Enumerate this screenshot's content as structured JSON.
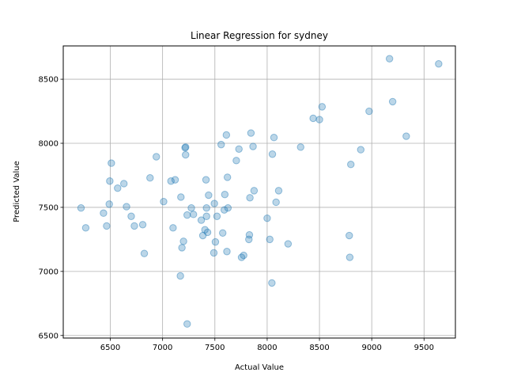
{
  "chart_data": {
    "type": "scatter",
    "title": "Linear Regression for sydney",
    "xlabel": "Actual Value",
    "ylabel": "Predicted Value",
    "xlim": [
      6050,
      9800
    ],
    "ylim": [
      6480,
      8760
    ],
    "xticks": [
      6500,
      7000,
      7500,
      8000,
      8500,
      9000,
      9500
    ],
    "yticks": [
      6500,
      7000,
      7500,
      8000,
      8500
    ],
    "grid": true,
    "color": "#1f77b4",
    "alpha": 0.3,
    "points": [
      {
        "x": 6220,
        "y": 7495
      },
      {
        "x": 6265,
        "y": 7340
      },
      {
        "x": 6435,
        "y": 7455
      },
      {
        "x": 6465,
        "y": 7355
      },
      {
        "x": 6490,
        "y": 7525
      },
      {
        "x": 6495,
        "y": 7705
      },
      {
        "x": 6510,
        "y": 7845
      },
      {
        "x": 6570,
        "y": 7650
      },
      {
        "x": 6630,
        "y": 7685
      },
      {
        "x": 6655,
        "y": 7505
      },
      {
        "x": 6700,
        "y": 7430
      },
      {
        "x": 6730,
        "y": 7355
      },
      {
        "x": 6810,
        "y": 7365
      },
      {
        "x": 6825,
        "y": 7140
      },
      {
        "x": 6880,
        "y": 7730
      },
      {
        "x": 6940,
        "y": 7895
      },
      {
        "x": 7010,
        "y": 7545
      },
      {
        "x": 7080,
        "y": 7705
      },
      {
        "x": 7100,
        "y": 7340
      },
      {
        "x": 7120,
        "y": 7715
      },
      {
        "x": 7170,
        "y": 6965
      },
      {
        "x": 7175,
        "y": 7580
      },
      {
        "x": 7185,
        "y": 7185
      },
      {
        "x": 7200,
        "y": 7235
      },
      {
        "x": 7215,
        "y": 7965
      },
      {
        "x": 7220,
        "y": 7970
      },
      {
        "x": 7220,
        "y": 7910
      },
      {
        "x": 7235,
        "y": 7440
      },
      {
        "x": 7235,
        "y": 6590
      },
      {
        "x": 7275,
        "y": 7495
      },
      {
        "x": 7295,
        "y": 7445
      },
      {
        "x": 7370,
        "y": 7400
      },
      {
        "x": 7385,
        "y": 7280
      },
      {
        "x": 7405,
        "y": 7325
      },
      {
        "x": 7415,
        "y": 7715
      },
      {
        "x": 7420,
        "y": 7430
      },
      {
        "x": 7420,
        "y": 7495
      },
      {
        "x": 7430,
        "y": 7305
      },
      {
        "x": 7440,
        "y": 7595
      },
      {
        "x": 7490,
        "y": 7145
      },
      {
        "x": 7495,
        "y": 7530
      },
      {
        "x": 7505,
        "y": 7230
      },
      {
        "x": 7520,
        "y": 7430
      },
      {
        "x": 7560,
        "y": 7990
      },
      {
        "x": 7575,
        "y": 7300
      },
      {
        "x": 7590,
        "y": 7480
      },
      {
        "x": 7595,
        "y": 7600
      },
      {
        "x": 7610,
        "y": 8065
      },
      {
        "x": 7615,
        "y": 7155
      },
      {
        "x": 7620,
        "y": 7735
      },
      {
        "x": 7625,
        "y": 7495
      },
      {
        "x": 7705,
        "y": 7865
      },
      {
        "x": 7730,
        "y": 7955
      },
      {
        "x": 7755,
        "y": 7110
      },
      {
        "x": 7775,
        "y": 7125
      },
      {
        "x": 7825,
        "y": 7250
      },
      {
        "x": 7830,
        "y": 7285
      },
      {
        "x": 7835,
        "y": 7575
      },
      {
        "x": 7845,
        "y": 8080
      },
      {
        "x": 7865,
        "y": 7975
      },
      {
        "x": 7875,
        "y": 7630
      },
      {
        "x": 8000,
        "y": 7415
      },
      {
        "x": 8025,
        "y": 7250
      },
      {
        "x": 8045,
        "y": 6910
      },
      {
        "x": 8050,
        "y": 7915
      },
      {
        "x": 8065,
        "y": 8045
      },
      {
        "x": 8085,
        "y": 7540
      },
      {
        "x": 8110,
        "y": 7630
      },
      {
        "x": 8200,
        "y": 7215
      },
      {
        "x": 8320,
        "y": 7970
      },
      {
        "x": 8440,
        "y": 8195
      },
      {
        "x": 8500,
        "y": 8185
      },
      {
        "x": 8525,
        "y": 8285
      },
      {
        "x": 8785,
        "y": 7280
      },
      {
        "x": 8790,
        "y": 7110
      },
      {
        "x": 8800,
        "y": 7835
      },
      {
        "x": 8895,
        "y": 7950
      },
      {
        "x": 8975,
        "y": 8250
      },
      {
        "x": 9170,
        "y": 8660
      },
      {
        "x": 9200,
        "y": 8325
      },
      {
        "x": 9330,
        "y": 8055
      },
      {
        "x": 9640,
        "y": 8620
      }
    ]
  }
}
